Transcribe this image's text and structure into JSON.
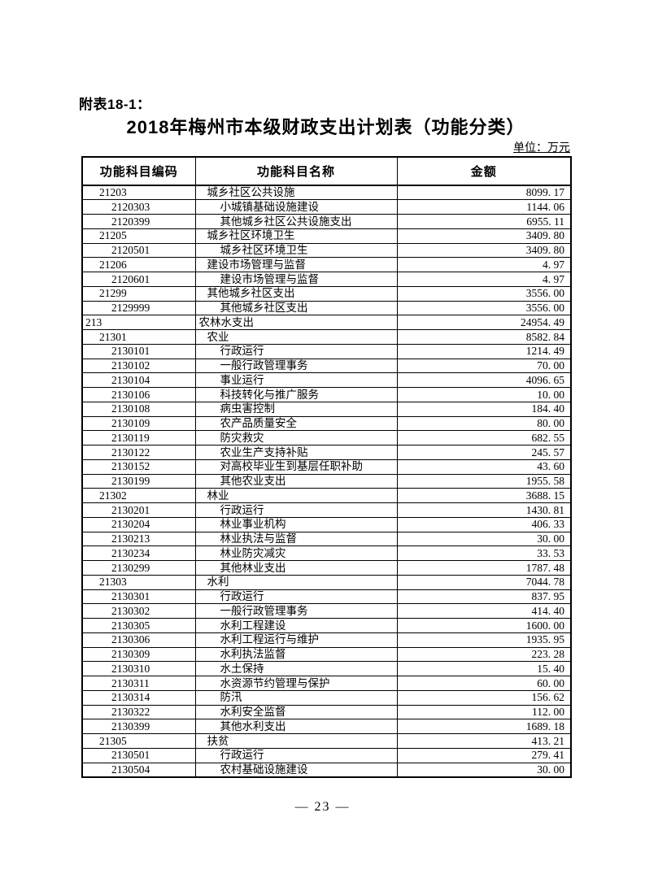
{
  "page": {
    "annex_label": "附表18-1：",
    "title": "2018年梅州市本级财政支出计划表（功能分类）",
    "unit_label": "单位：万元",
    "page_number": "— 23 —"
  },
  "table": {
    "columns": [
      "功能科目编码",
      "功能科目名称",
      "金额"
    ],
    "rows": [
      {
        "code": "21203",
        "name": "城乡社区公共设施",
        "amount": "8099. 17",
        "level": 1
      },
      {
        "code": "2120303",
        "name": "小城镇基础设施建设",
        "amount": "1144. 06",
        "level": 2
      },
      {
        "code": "2120399",
        "name": "其他城乡社区公共设施支出",
        "amount": "6955. 11",
        "level": 2
      },
      {
        "code": "21205",
        "name": "城乡社区环境卫生",
        "amount": "3409. 80",
        "level": 1
      },
      {
        "code": "2120501",
        "name": "城乡社区环境卫生",
        "amount": "3409. 80",
        "level": 2
      },
      {
        "code": "21206",
        "name": "建设市场管理与监督",
        "amount": "4. 97",
        "level": 1
      },
      {
        "code": "2120601",
        "name": "建设市场管理与监督",
        "amount": "4. 97",
        "level": 2
      },
      {
        "code": "21299",
        "name": "其他城乡社区支出",
        "amount": "3556. 00",
        "level": 1
      },
      {
        "code": "2129999",
        "name": "其他城乡社区支出",
        "amount": "3556. 00",
        "level": 2
      },
      {
        "code": "213",
        "name": "农林水支出",
        "amount": "24954. 49",
        "level": 0
      },
      {
        "code": "21301",
        "name": "农业",
        "amount": "8582. 84",
        "level": 1
      },
      {
        "code": "2130101",
        "name": "行政运行",
        "amount": "1214. 49",
        "level": 2
      },
      {
        "code": "2130102",
        "name": "一般行政管理事务",
        "amount": "70. 00",
        "level": 2
      },
      {
        "code": "2130104",
        "name": "事业运行",
        "amount": "4096. 65",
        "level": 2
      },
      {
        "code": "2130106",
        "name": "科技转化与推广服务",
        "amount": "10. 00",
        "level": 2
      },
      {
        "code": "2130108",
        "name": "病虫害控制",
        "amount": "184. 40",
        "level": 2
      },
      {
        "code": "2130109",
        "name": "农产品质量安全",
        "amount": "80. 00",
        "level": 2
      },
      {
        "code": "2130119",
        "name": "防灾救灾",
        "amount": "682. 55",
        "level": 2
      },
      {
        "code": "2130122",
        "name": "农业生产支持补贴",
        "amount": "245. 57",
        "level": 2
      },
      {
        "code": "2130152",
        "name": "对高校毕业生到基层任职补助",
        "amount": "43. 60",
        "level": 2
      },
      {
        "code": "2130199",
        "name": "其他农业支出",
        "amount": "1955. 58",
        "level": 2
      },
      {
        "code": "21302",
        "name": "林业",
        "amount": "3688. 15",
        "level": 1
      },
      {
        "code": "2130201",
        "name": "行政运行",
        "amount": "1430. 81",
        "level": 2
      },
      {
        "code": "2130204",
        "name": "林业事业机构",
        "amount": "406. 33",
        "level": 2
      },
      {
        "code": "2130213",
        "name": "林业执法与监督",
        "amount": "30. 00",
        "level": 2
      },
      {
        "code": "2130234",
        "name": "林业防灾减灾",
        "amount": "33. 53",
        "level": 2
      },
      {
        "code": "2130299",
        "name": "其他林业支出",
        "amount": "1787. 48",
        "level": 2
      },
      {
        "code": "21303",
        "name": "水利",
        "amount": "7044. 78",
        "level": 1
      },
      {
        "code": "2130301",
        "name": "行政运行",
        "amount": "837. 95",
        "level": 2
      },
      {
        "code": "2130302",
        "name": "一般行政管理事务",
        "amount": "414. 40",
        "level": 2
      },
      {
        "code": "2130305",
        "name": "水利工程建设",
        "amount": "1600. 00",
        "level": 2
      },
      {
        "code": "2130306",
        "name": "水利工程运行与维护",
        "amount": "1935. 95",
        "level": 2
      },
      {
        "code": "2130309",
        "name": "水利执法监督",
        "amount": "223. 28",
        "level": 2
      },
      {
        "code": "2130310",
        "name": "水土保持",
        "amount": "15. 40",
        "level": 2
      },
      {
        "code": "2130311",
        "name": "水资源节约管理与保护",
        "amount": "60. 00",
        "level": 2
      },
      {
        "code": "2130314",
        "name": "防汛",
        "amount": "156. 62",
        "level": 2
      },
      {
        "code": "2130322",
        "name": "水利安全监督",
        "amount": "112. 00",
        "level": 2
      },
      {
        "code": "2130399",
        "name": "其他水利支出",
        "amount": "1689. 18",
        "level": 2
      },
      {
        "code": "21305",
        "name": "扶贫",
        "amount": "413. 21",
        "level": 1
      },
      {
        "code": "2130501",
        "name": "行政运行",
        "amount": "279. 41",
        "level": 2
      },
      {
        "code": "2130504",
        "name": "农村基础设施建设",
        "amount": "30. 00",
        "level": 2
      }
    ]
  }
}
